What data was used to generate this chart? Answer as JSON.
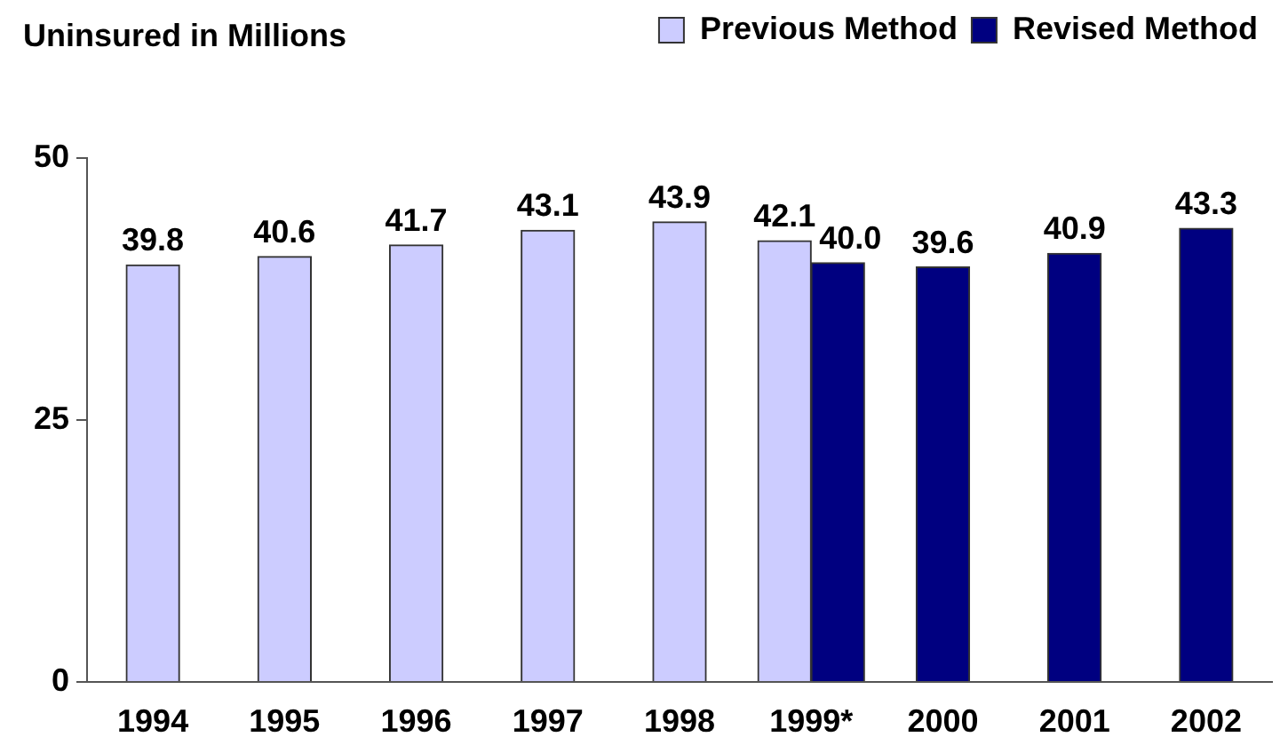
{
  "chart_data": {
    "type": "bar",
    "ylabel": "Uninsured in Millions",
    "categories": [
      "1994",
      "1995",
      "1996",
      "1997",
      "1998",
      "1999*",
      "2000",
      "2001",
      "2002"
    ],
    "series": [
      {
        "name": "Previous Method",
        "color": "#ccccff",
        "values": [
          39.8,
          40.6,
          41.7,
          43.1,
          43.9,
          42.1,
          null,
          null,
          null
        ],
        "value_labels": [
          "39.8",
          "40.6",
          "41.7",
          "43.1",
          "43.9",
          "42.1",
          null,
          null,
          null
        ]
      },
      {
        "name": "Revised Method",
        "color": "#000080",
        "values": [
          null,
          null,
          null,
          null,
          null,
          40.0,
          39.6,
          40.9,
          43.3
        ],
        "value_labels": [
          null,
          null,
          null,
          null,
          null,
          "40.0",
          "39.6",
          "40.9",
          "43.3"
        ]
      }
    ],
    "ylim": [
      0,
      50
    ],
    "yticks": [
      0,
      25,
      50
    ],
    "legend": "top right"
  }
}
